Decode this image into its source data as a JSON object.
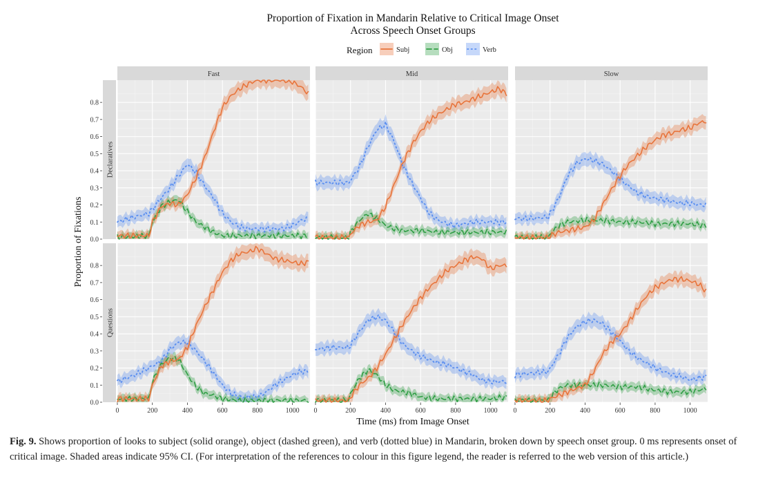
{
  "chart_data": {
    "type": "line",
    "title": "Proportion of Fixation in Mandarin Relative to Critical Image Onset",
    "subtitle": "Across Speech Onset Groups",
    "xlabel": "Time (ms) from Image Onset",
    "ylabel": "Proportion of Fixations",
    "xlim": [
      0,
      1100
    ],
    "ylim": [
      0,
      0.93
    ],
    "x_ticks": [
      "0",
      "200",
      "400",
      "600",
      "800",
      "1000"
    ],
    "y_ticks": [
      "0.0",
      "0.1",
      "0.2",
      "0.3",
      "0.4",
      "0.5",
      "0.6",
      "0.7",
      "0.8"
    ],
    "grid": true,
    "legend": {
      "title": "Region",
      "placement": "top",
      "entries": [
        {
          "label": "Subj",
          "color": "#e8743b",
          "dash": "solid"
        },
        {
          "label": "Obj",
          "color": "#2f9e44",
          "dash": "dashed"
        },
        {
          "label": "Verb",
          "color": "#5b8ff0",
          "dash": "dotted"
        }
      ]
    },
    "columns": [
      "Fast",
      "Mid",
      "Slow"
    ],
    "rows": [
      "Declaratives",
      "Questions"
    ],
    "ci_halfwidth": {
      "Subj": 0.045,
      "Obj": 0.04,
      "Verb": 0.05
    },
    "panels": [
      {
        "row": "Declaratives",
        "column": "Fast",
        "series": [
          {
            "name": "Subj",
            "x": [
              0,
              180,
              200,
              250,
              300,
              350,
              400,
              450,
              500,
              550,
              600,
              650,
              700,
              750,
              800,
              850,
              900,
              950,
              1000,
              1050,
              1090
            ],
            "y": [
              0.02,
              0.02,
              0.1,
              0.19,
              0.21,
              0.2,
              0.26,
              0.36,
              0.48,
              0.63,
              0.77,
              0.84,
              0.88,
              0.91,
              0.93,
              0.93,
              0.93,
              0.93,
              0.92,
              0.89,
              0.85
            ]
          },
          {
            "name": "Obj",
            "x": [
              0,
              180,
              200,
              250,
              300,
              350,
              400,
              450,
              500,
              550,
              600,
              650,
              700,
              800,
              900,
              1000,
              1090
            ],
            "y": [
              0.01,
              0.02,
              0.1,
              0.19,
              0.22,
              0.23,
              0.16,
              0.1,
              0.07,
              0.04,
              0.02,
              0.02,
              0.02,
              0.02,
              0.02,
              0.02,
              0.02
            ]
          },
          {
            "name": "Verb",
            "x": [
              0,
              100,
              180,
              250,
              300,
              350,
              400,
              450,
              500,
              550,
              600,
              650,
              700,
              750,
              800,
              850,
              900,
              950,
              1000,
              1050,
              1090
            ],
            "y": [
              0.1,
              0.13,
              0.15,
              0.24,
              0.3,
              0.37,
              0.44,
              0.39,
              0.31,
              0.24,
              0.15,
              0.1,
              0.07,
              0.06,
              0.06,
              0.06,
              0.06,
              0.06,
              0.08,
              0.11,
              0.12
            ]
          }
        ]
      },
      {
        "row": "Declaratives",
        "column": "Mid",
        "series": [
          {
            "name": "Subj",
            "x": [
              0,
              190,
              200,
              250,
              300,
              350,
              400,
              450,
              500,
              550,
              600,
              650,
              700,
              750,
              800,
              850,
              900,
              950,
              1000,
              1050,
              1090
            ],
            "y": [
              0.01,
              0.01,
              0.03,
              0.08,
              0.1,
              0.11,
              0.19,
              0.32,
              0.45,
              0.55,
              0.63,
              0.69,
              0.73,
              0.76,
              0.79,
              0.8,
              0.82,
              0.84,
              0.86,
              0.88,
              0.85
            ]
          },
          {
            "name": "Obj",
            "x": [
              0,
              190,
              200,
              250,
              300,
              350,
              400,
              450,
              500,
              550,
              600,
              700,
              800,
              900,
              1000,
              1090
            ],
            "y": [
              0.01,
              0.01,
              0.04,
              0.11,
              0.15,
              0.12,
              0.08,
              0.06,
              0.05,
              0.05,
              0.05,
              0.04,
              0.04,
              0.04,
              0.04,
              0.04
            ]
          },
          {
            "name": "Verb",
            "x": [
              0,
              100,
              190,
              250,
              300,
              350,
              400,
              450,
              500,
              550,
              600,
              650,
              700,
              750,
              800,
              850,
              900,
              950,
              1000,
              1050,
              1090
            ],
            "y": [
              0.33,
              0.33,
              0.33,
              0.42,
              0.54,
              0.64,
              0.67,
              0.57,
              0.43,
              0.33,
              0.24,
              0.15,
              0.11,
              0.09,
              0.08,
              0.09,
              0.1,
              0.1,
              0.1,
              0.1,
              0.1
            ]
          }
        ]
      },
      {
        "row": "Declaratives",
        "column": "Slow",
        "series": [
          {
            "name": "Subj",
            "x": [
              0,
              190,
              200,
              250,
              300,
              350,
              400,
              450,
              500,
              550,
              600,
              650,
              700,
              750,
              800,
              850,
              900,
              950,
              1000,
              1050,
              1090
            ],
            "y": [
              0.01,
              0.01,
              0.02,
              0.04,
              0.05,
              0.06,
              0.07,
              0.11,
              0.2,
              0.29,
              0.37,
              0.44,
              0.49,
              0.54,
              0.58,
              0.61,
              0.62,
              0.64,
              0.65,
              0.68,
              0.69
            ]
          },
          {
            "name": "Obj",
            "x": [
              0,
              190,
              200,
              250,
              300,
              400,
              500,
              600,
              700,
              800,
              900,
              1000,
              1090
            ],
            "y": [
              0.01,
              0.01,
              0.03,
              0.08,
              0.1,
              0.11,
              0.11,
              0.1,
              0.1,
              0.09,
              0.09,
              0.09,
              0.08
            ]
          },
          {
            "name": "Verb",
            "x": [
              0,
              100,
              190,
              250,
              300,
              350,
              400,
              450,
              500,
              550,
              600,
              650,
              700,
              750,
              800,
              850,
              900,
              950,
              1000,
              1050,
              1090
            ],
            "y": [
              0.12,
              0.12,
              0.13,
              0.24,
              0.37,
              0.44,
              0.47,
              0.46,
              0.44,
              0.4,
              0.35,
              0.31,
              0.27,
              0.25,
              0.24,
              0.23,
              0.22,
              0.21,
              0.21,
              0.2,
              0.2
            ]
          }
        ]
      },
      {
        "row": "Questions",
        "column": "Fast",
        "series": [
          {
            "name": "Subj",
            "x": [
              0,
              180,
              200,
              250,
              300,
              350,
              400,
              450,
              500,
              550,
              600,
              650,
              700,
              750,
              800,
              850,
              900,
              950,
              1000,
              1050,
              1090
            ],
            "y": [
              0.02,
              0.02,
              0.1,
              0.21,
              0.24,
              0.25,
              0.32,
              0.45,
              0.56,
              0.66,
              0.76,
              0.83,
              0.87,
              0.88,
              0.9,
              0.87,
              0.84,
              0.83,
              0.82,
              0.81,
              0.82
            ]
          },
          {
            "name": "Obj",
            "x": [
              0,
              180,
              200,
              250,
              300,
              350,
              400,
              450,
              500,
              550,
              600,
              700,
              800,
              900,
              1000,
              1090
            ],
            "y": [
              0.02,
              0.02,
              0.12,
              0.22,
              0.26,
              0.25,
              0.16,
              0.09,
              0.05,
              0.04,
              0.02,
              0.01,
              0.01,
              0.01,
              0.01,
              0.01
            ]
          },
          {
            "name": "Verb",
            "x": [
              0,
              100,
              180,
              250,
              300,
              350,
              400,
              450,
              500,
              550,
              600,
              650,
              700,
              750,
              800,
              850,
              900,
              950,
              1000,
              1050,
              1090
            ],
            "y": [
              0.12,
              0.16,
              0.2,
              0.24,
              0.31,
              0.35,
              0.35,
              0.3,
              0.24,
              0.17,
              0.1,
              0.05,
              0.03,
              0.03,
              0.03,
              0.06,
              0.1,
              0.13,
              0.16,
              0.18,
              0.18
            ]
          }
        ]
      },
      {
        "row": "Questions",
        "column": "Mid",
        "series": [
          {
            "name": "Subj",
            "x": [
              0,
              190,
              200,
              250,
              300,
              350,
              400,
              450,
              500,
              550,
              600,
              650,
              700,
              750,
              800,
              850,
              900,
              950,
              1000,
              1050,
              1090
            ],
            "y": [
              0.01,
              0.01,
              0.03,
              0.1,
              0.14,
              0.2,
              0.28,
              0.37,
              0.46,
              0.54,
              0.61,
              0.67,
              0.72,
              0.77,
              0.8,
              0.83,
              0.85,
              0.84,
              0.78,
              0.8,
              0.8
            ]
          },
          {
            "name": "Obj",
            "x": [
              0,
              190,
              200,
              250,
              300,
              350,
              400,
              450,
              500,
              550,
              600,
              700,
              800,
              900,
              1000,
              1090
            ],
            "y": [
              0.01,
              0.01,
              0.05,
              0.14,
              0.19,
              0.16,
              0.1,
              0.07,
              0.06,
              0.05,
              0.03,
              0.02,
              0.02,
              0.02,
              0.02,
              0.03
            ]
          },
          {
            "name": "Verb",
            "x": [
              0,
              100,
              190,
              250,
              300,
              350,
              400,
              450,
              500,
              550,
              600,
              650,
              700,
              750,
              800,
              850,
              900,
              950,
              1000,
              1050,
              1090
            ],
            "y": [
              0.31,
              0.32,
              0.32,
              0.41,
              0.48,
              0.5,
              0.48,
              0.41,
              0.34,
              0.3,
              0.27,
              0.25,
              0.23,
              0.22,
              0.2,
              0.18,
              0.16,
              0.13,
              0.12,
              0.12,
              0.12
            ]
          }
        ]
      },
      {
        "row": "Questions",
        "column": "Slow",
        "series": [
          {
            "name": "Subj",
            "x": [
              0,
              190,
              200,
              250,
              300,
              350,
              400,
              450,
              500,
              550,
              600,
              650,
              700,
              750,
              800,
              850,
              900,
              950,
              1000,
              1050,
              1090
            ],
            "y": [
              0.01,
              0.01,
              0.02,
              0.04,
              0.06,
              0.08,
              0.1,
              0.18,
              0.28,
              0.35,
              0.4,
              0.47,
              0.55,
              0.62,
              0.67,
              0.7,
              0.72,
              0.72,
              0.71,
              0.69,
              0.65
            ]
          },
          {
            "name": "Obj",
            "x": [
              0,
              190,
              200,
              250,
              300,
              400,
              500,
              600,
              700,
              800,
              900,
              1000,
              1090
            ],
            "y": [
              0.01,
              0.01,
              0.03,
              0.08,
              0.1,
              0.1,
              0.1,
              0.09,
              0.09,
              0.07,
              0.06,
              0.06,
              0.08
            ]
          },
          {
            "name": "Verb",
            "x": [
              0,
              100,
              190,
              250,
              300,
              350,
              400,
              450,
              500,
              550,
              600,
              650,
              700,
              750,
              800,
              850,
              900,
              950,
              1000,
              1050,
              1090
            ],
            "y": [
              0.16,
              0.17,
              0.18,
              0.28,
              0.38,
              0.44,
              0.47,
              0.48,
              0.46,
              0.41,
              0.36,
              0.3,
              0.26,
              0.23,
              0.2,
              0.18,
              0.16,
              0.15,
              0.13,
              0.14,
              0.15
            ]
          }
        ]
      }
    ]
  },
  "caption": {
    "label": "Fig. 9.",
    "text": "Shows proportion of looks to subject (solid orange), object (dashed green), and verb (dotted blue) in Mandarin, broken down by speech onset group. 0 ms represents onset of critical image. Shaded areas indicate 95% CI. (For interpretation of the references to colour in this figure legend, the reader is referred to the web version of this article.)"
  }
}
